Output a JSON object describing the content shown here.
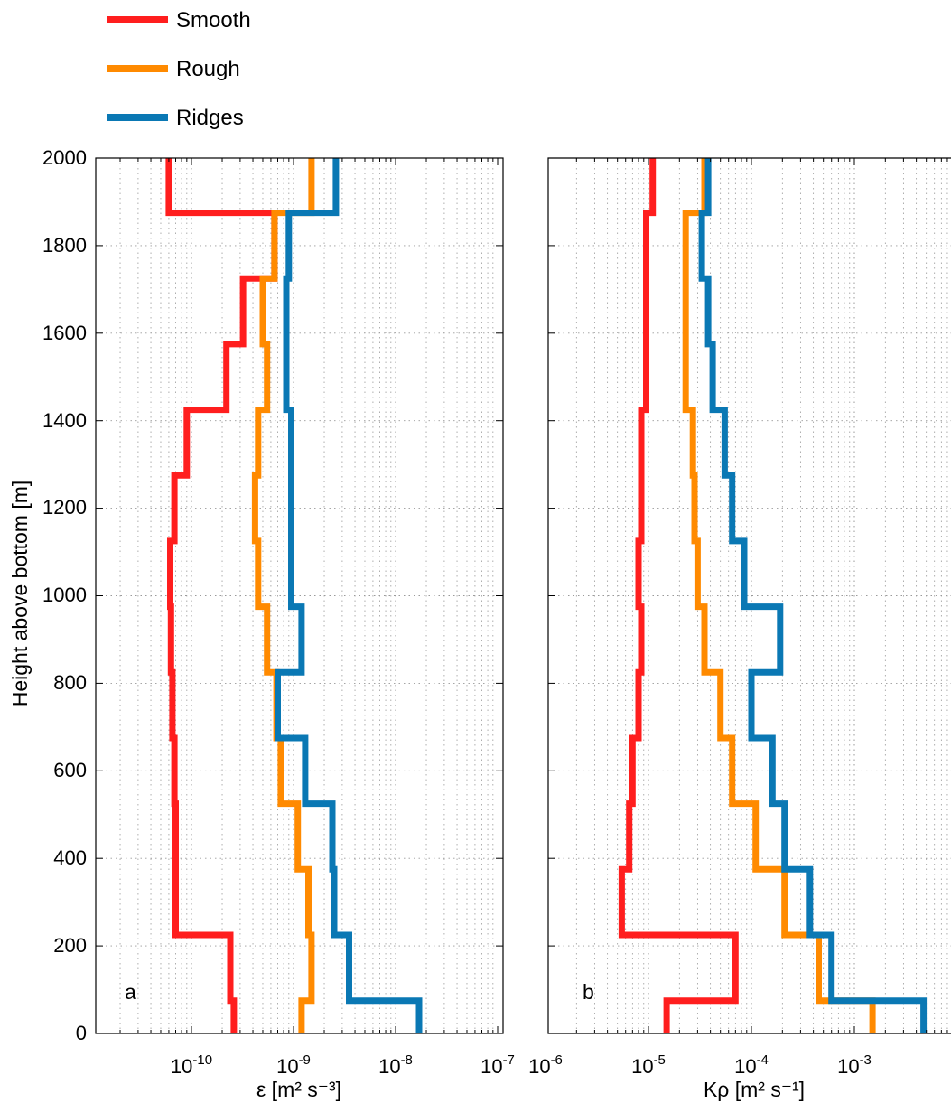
{
  "legend": {
    "placement": "top-left, above panels",
    "entries": [
      {
        "label": "Smooth",
        "color": "#ff1e1e"
      },
      {
        "label": "Rough",
        "color": "#ff8a00"
      },
      {
        "label": "Ridges",
        "color": "#0a78b4"
      }
    ]
  },
  "shared_y": {
    "label": "Height above bottom [m]",
    "ticks": [
      "0",
      "200",
      "400",
      "600",
      "800",
      "1000",
      "1200",
      "1400",
      "1600",
      "1800",
      "2000"
    ]
  },
  "chart_data": [
    {
      "type": "line",
      "panel_letter": "a",
      "xscale": "log",
      "xlim": [
        1e-11,
        1e-07
      ],
      "ylim": [
        0,
        2000
      ],
      "xlabel": "ε [m² s⁻³]",
      "ylabel": "Height above bottom [m]",
      "x_tick_exponents": [
        "-10",
        "-9",
        "-8",
        "-7"
      ],
      "grid": true,
      "y_bins": [
        75,
        225,
        375,
        525,
        675,
        825,
        975,
        1125,
        1275,
        1425,
        1575,
        1725,
        1875,
        2000
      ],
      "series": [
        {
          "name": "Smooth",
          "color": "#ff1e1e",
          "x": [
            2.6e-10,
            2.4e-10,
            7e-11,
            7e-11,
            6.8e-11,
            6.5e-11,
            6.3e-11,
            6.2e-11,
            6.8e-11,
            9e-11,
            2.2e-10,
            3.2e-10,
            6.5e-10,
            6e-11
          ]
        },
        {
          "name": "Rough",
          "color": "#ff8a00",
          "x": [
            1.2e-09,
            1.5e-09,
            1.4e-09,
            1.1e-09,
            7.5e-10,
            6.8e-10,
            5.5e-10,
            4.5e-10,
            4.2e-10,
            4.5e-10,
            5.5e-10,
            5e-10,
            6.5e-10,
            1.5e-09
          ]
        },
        {
          "name": "Ridges",
          "color": "#0a78b4",
          "x": [
            1.7e-08,
            3.5e-09,
            2.5e-09,
            2.4e-09,
            1.3e-09,
            7e-10,
            1.2e-09,
            9.5e-10,
            9.5e-10,
            9.5e-10,
            8.5e-10,
            8.5e-10,
            9e-10,
            2.6e-09
          ]
        }
      ]
    },
    {
      "type": "line",
      "panel_letter": "b",
      "xscale": "log",
      "xlim": [
        1e-06,
        0.01
      ],
      "ylim": [
        0,
        2000
      ],
      "xlabel": "Kρ [m² s⁻¹]",
      "x_tick_labels": [
        "10",
        "10",
        "10",
        "10"
      ],
      "x_tick_exponents": [
        "-6",
        "-5",
        "-4",
        "-3"
      ],
      "grid": true,
      "y_bins": [
        75,
        225,
        375,
        525,
        675,
        825,
        975,
        1125,
        1275,
        1425,
        1575,
        1725,
        1875,
        2000
      ],
      "series": [
        {
          "name": "Smooth",
          "color": "#ff1e1e",
          "x": [
            1.5e-05,
            7e-05,
            5.5e-06,
            6.5e-06,
            7e-06,
            8e-06,
            8.5e-06,
            8e-06,
            8.5e-06,
            8.5e-06,
            9.5e-06,
            9.5e-06,
            9.5e-06,
            1.1e-05
          ]
        },
        {
          "name": "Rough",
          "color": "#ff8a00",
          "x": [
            0.0015,
            0.00045,
            0.00021,
            0.00011,
            6.5e-05,
            5e-05,
            3.5e-05,
            3e-05,
            2.8e-05,
            2.7e-05,
            2.3e-05,
            2.3e-05,
            2.3e-05,
            3.5e-05
          ]
        },
        {
          "name": "Ridges",
          "color": "#0a78b4",
          "x": [
            0.0047,
            0.0006,
            0.00037,
            0.00021,
            0.00016,
            0.0001,
            0.00019,
            8.5e-05,
            6.5e-05,
            5.5e-05,
            4.2e-05,
            3.8e-05,
            3.3e-05,
            3.8e-05
          ]
        }
      ]
    }
  ]
}
